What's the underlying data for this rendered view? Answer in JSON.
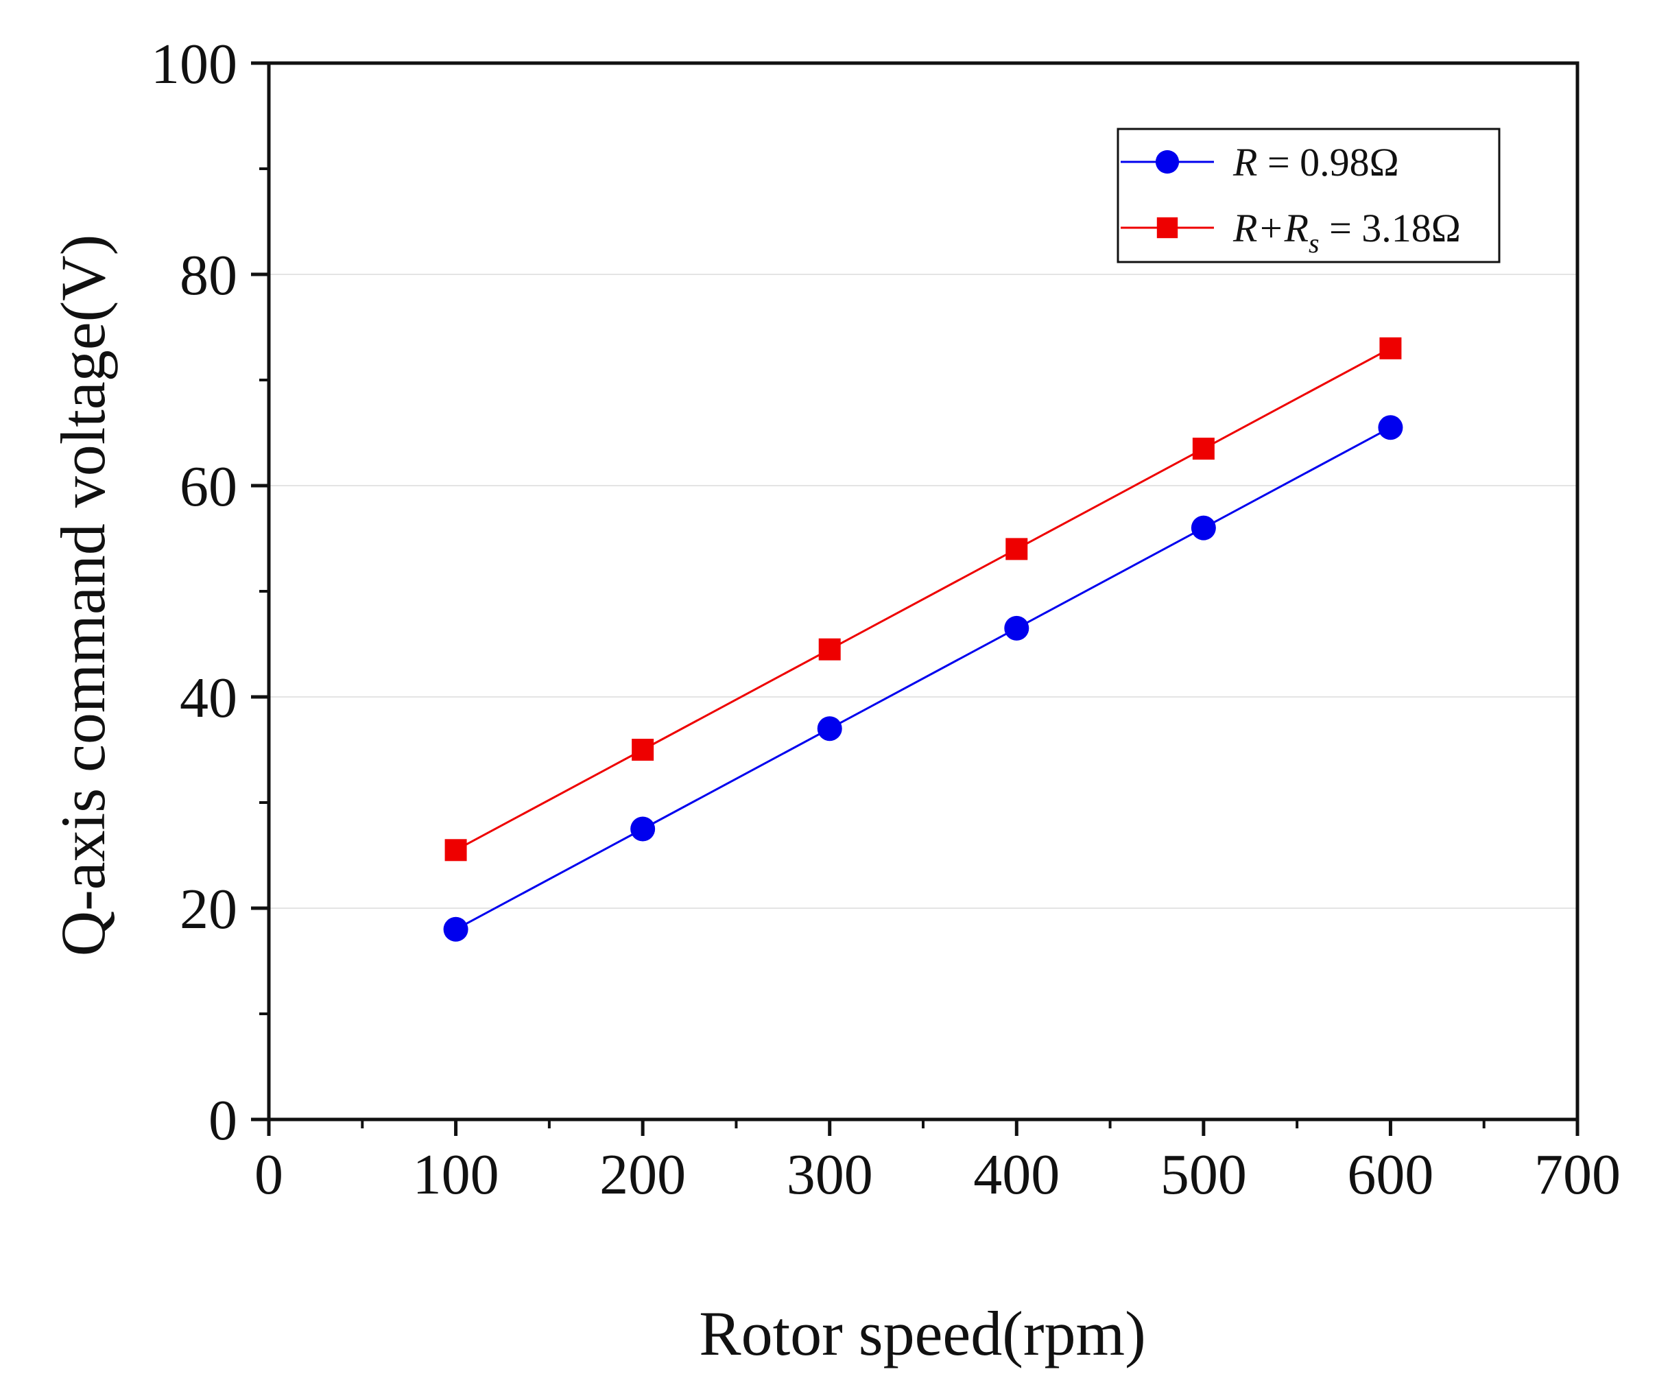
{
  "chart_data": {
    "type": "line",
    "title": "",
    "xlabel": "Rotor speed(rpm)",
    "ylabel": "Q-axis command voltage(V)",
    "xlim": [
      0,
      700
    ],
    "ylim": [
      0,
      100
    ],
    "x_ticks": [
      0,
      100,
      200,
      300,
      400,
      500,
      600,
      700
    ],
    "x_minor_ticks": [
      50,
      150,
      250,
      350,
      450,
      550,
      650
    ],
    "y_ticks": [
      0,
      20,
      40,
      60,
      80,
      100
    ],
    "y_minor_ticks": [
      10,
      30,
      50,
      70,
      90
    ],
    "grid": "horizontal",
    "legend_position": "top-right",
    "x": [
      100,
      200,
      300,
      400,
      500,
      600
    ],
    "series": [
      {
        "name": "R = 0.98Ω",
        "legend_parts": {
          "var": "R",
          "sub": "",
          "rest": " = 0.98Ω"
        },
        "color": "#0000ee",
        "marker": "circle",
        "values": [
          18.0,
          27.5,
          37.0,
          46.5,
          56.0,
          65.5
        ]
      },
      {
        "name": "R+Rs = 3.18Ω",
        "legend_parts": {
          "var": "R+R",
          "sub": "s",
          "rest": " = 3.18Ω"
        },
        "color": "#ee0000",
        "marker": "square",
        "values": [
          25.5,
          35.0,
          44.5,
          54.0,
          63.5,
          73.0
        ]
      }
    ]
  }
}
